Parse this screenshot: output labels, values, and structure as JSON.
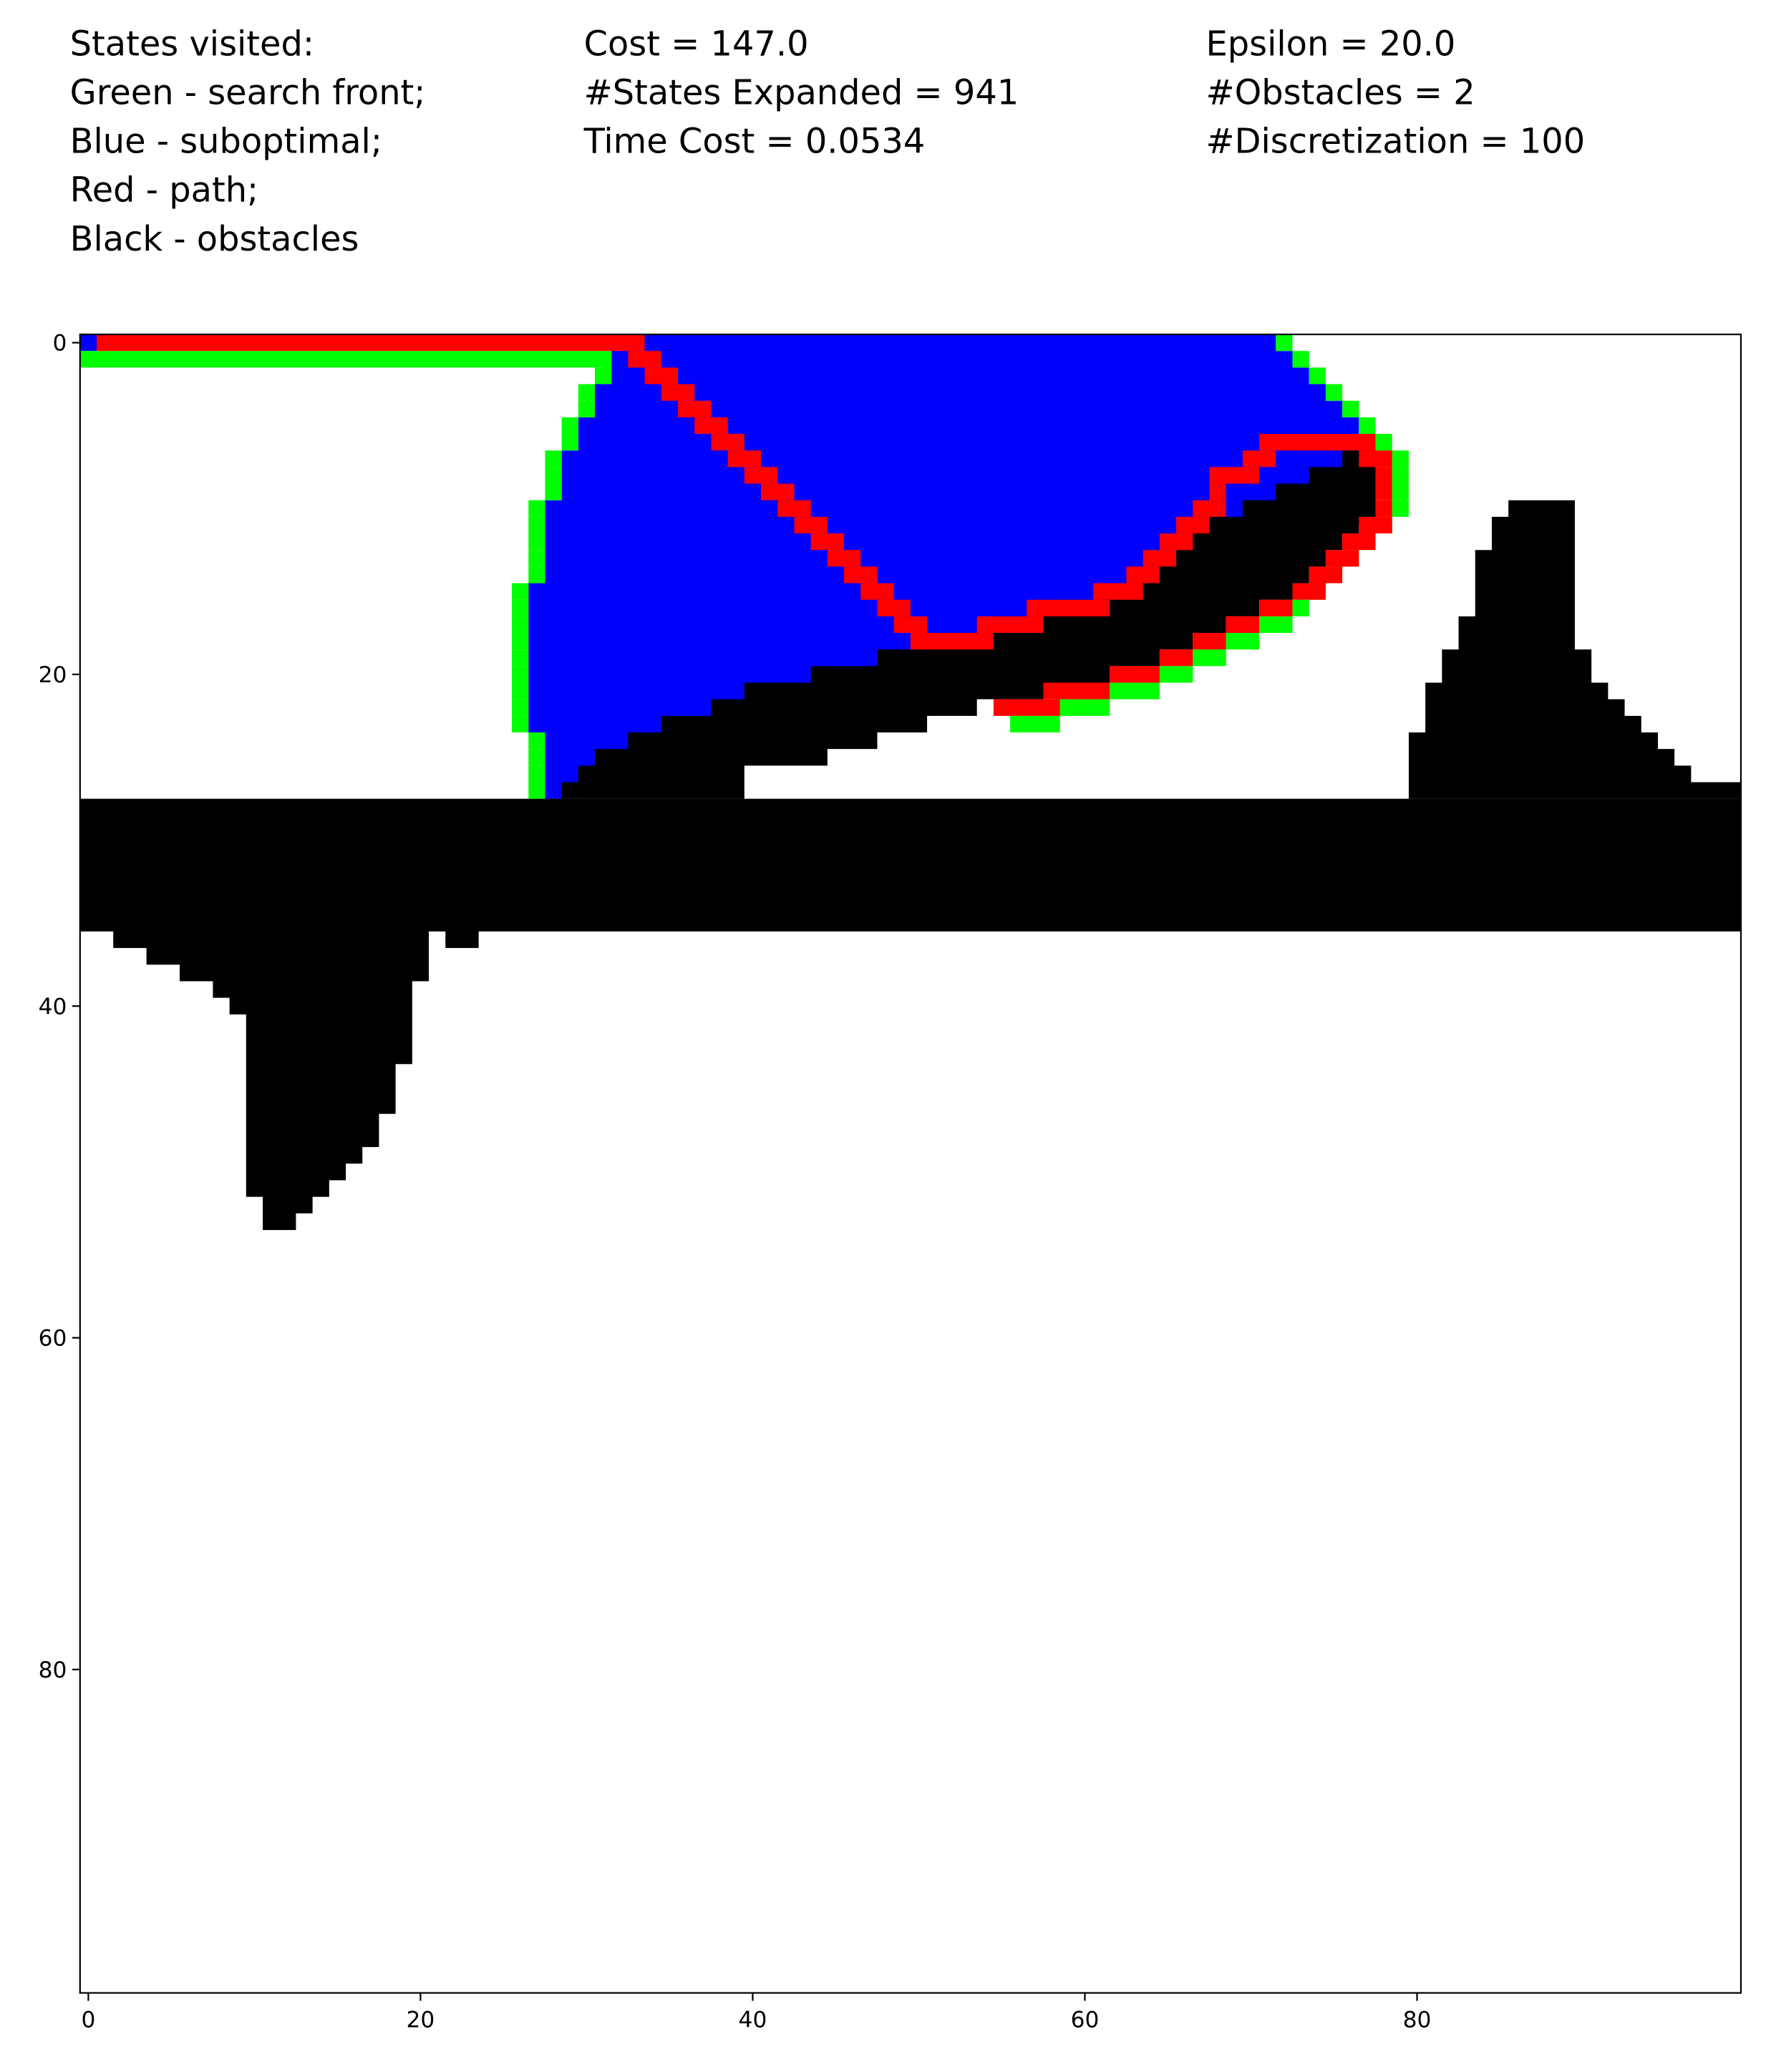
{
  "chart_data": {
    "type": "grid-map",
    "annotations": [
      [
        "States visited:",
        "Green - search front;",
        "Blue - suboptimal;",
        "Red - path;",
        "Black - obstacles"
      ],
      [
        "Cost = 147.0",
        "#States Expanded = 941",
        "Time Cost = 0.0534"
      ],
      [
        "Epsilon = 20.0",
        "#Obstacles = 2",
        "#Discretization = 100"
      ]
    ],
    "xlim": [
      -0.5,
      99.5
    ],
    "ylim": [
      99.5,
      -0.5
    ],
    "xticks": [
      0,
      20,
      40,
      60,
      80
    ],
    "yticks": [
      0,
      20,
      40,
      60,
      80
    ]
  }
}
